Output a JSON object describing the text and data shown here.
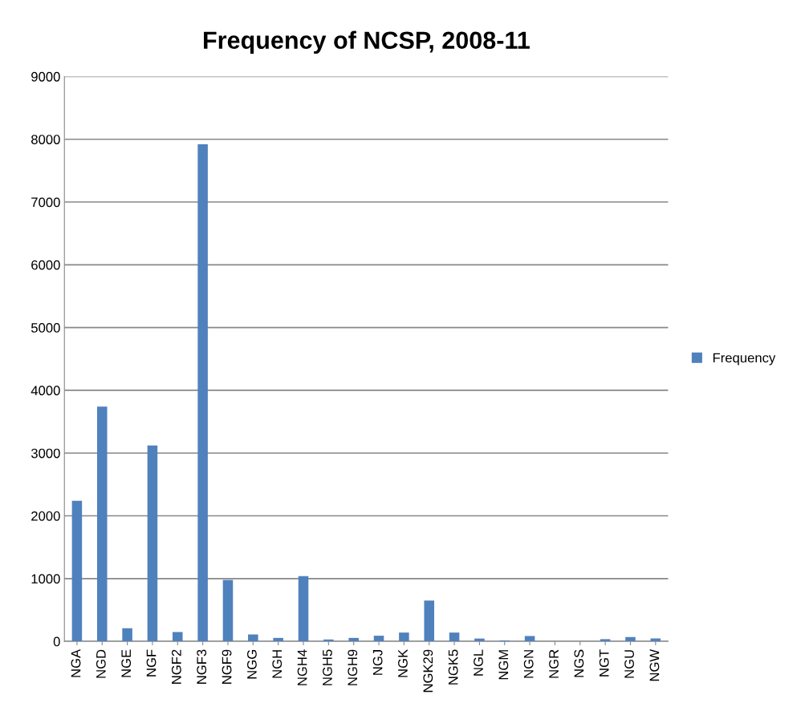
{
  "chart_data": {
    "type": "bar",
    "title": "Frequency of NCSP, 2008-11",
    "categories": [
      "NGA",
      "NGD",
      "NGE",
      "NGF",
      "NGF2",
      "NGF3",
      "NGF9",
      "NGG",
      "NGH",
      "NGH4",
      "NGH5",
      "NGH9",
      "NGJ",
      "NGK",
      "NGK29",
      "NGK5",
      "NGL",
      "NGM",
      "NGN",
      "NGR",
      "NGS",
      "NGT",
      "NGU",
      "NGW"
    ],
    "series": [
      {
        "name": "Frequency",
        "color": "#4f81bd",
        "values": [
          2240,
          3740,
          210,
          3120,
          150,
          7920,
          980,
          110,
          55,
          1040,
          30,
          55,
          90,
          140,
          650,
          140,
          45,
          15,
          85,
          0,
          0,
          35,
          70,
          45
        ]
      }
    ],
    "ylim": [
      0,
      9000
    ],
    "yticks": [
      0,
      1000,
      2000,
      3000,
      4000,
      5000,
      6000,
      7000,
      8000,
      9000
    ],
    "grid": "y",
    "legend": "right"
  }
}
